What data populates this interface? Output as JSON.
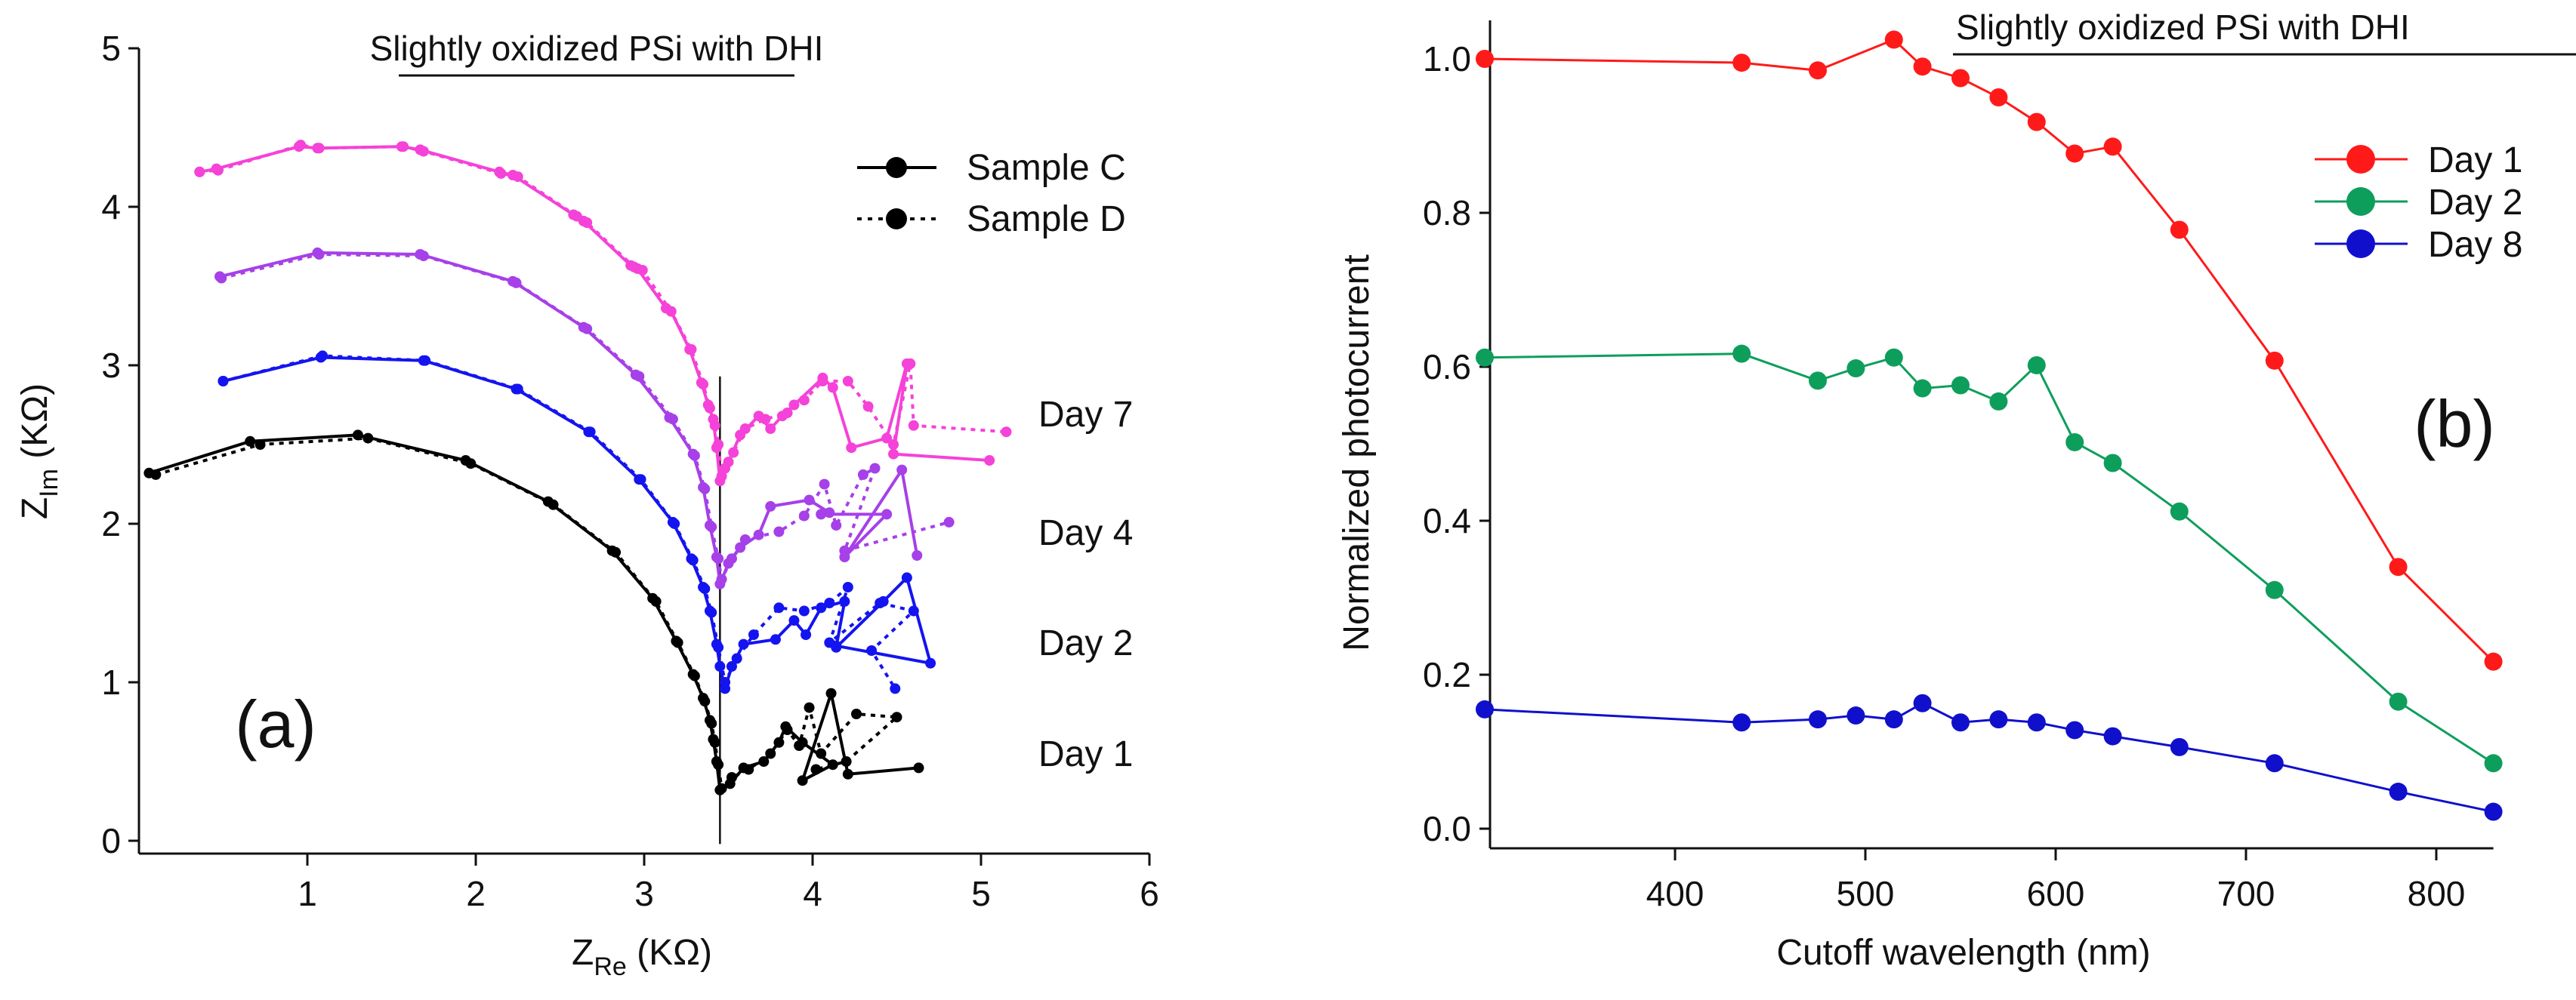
{
  "chart_data": [
    {
      "type": "scatter",
      "panel_label": "(a)",
      "title": "Slightly oxidized PSi with DHI",
      "xlabel_main": "Z",
      "xlabel_sub": "Re",
      "xlabel_unit": " (KΩ)",
      "ylabel_main": "Z",
      "ylabel_sub": "Im",
      "ylabel_unit": " (KΩ)",
      "xlim": [
        0,
        6
      ],
      "ylim": [
        0,
        5
      ],
      "xticks": [
        "1",
        "2",
        "3",
        "4",
        "5",
        "6"
      ],
      "xtick_values": [
        1,
        2,
        3,
        4,
        5,
        6
      ],
      "yticks": [
        "0",
        "1",
        "2",
        "3",
        "4",
        "5"
      ],
      "ytick_values": [
        0,
        1,
        2,
        3,
        4,
        5
      ],
      "vertical_line_x": 3.45,
      "legend": [
        {
          "label": "Sample C",
          "style": "solid"
        },
        {
          "label": "Sample D",
          "style": "dotted"
        }
      ],
      "day_labels": [
        "Day 7",
        "Day 4",
        "Day 2",
        "Day 1"
      ],
      "series": [
        {
          "name": "Day 7 Sample C",
          "day": "Day 7",
          "sample": "C",
          "color": "#f542d8",
          "style": "solid",
          "points": [
            [
              0.36,
              4.22
            ],
            [
              0.46,
              4.24
            ],
            [
              0.95,
              4.38
            ],
            [
              1.06,
              4.37
            ],
            [
              1.56,
              4.38
            ],
            [
              1.67,
              4.36
            ],
            [
              2.14,
              4.22
            ],
            [
              2.22,
              4.2
            ],
            [
              2.58,
              3.95
            ],
            [
              2.64,
              3.91
            ],
            [
              2.92,
              3.63
            ],
            [
              2.96,
              3.61
            ],
            [
              3.13,
              3.36
            ],
            [
              3.16,
              3.34
            ],
            [
              3.27,
              3.1
            ],
            [
              3.34,
              2.89
            ],
            [
              3.38,
              2.75
            ],
            [
              3.41,
              2.66
            ],
            [
              3.43,
              2.48
            ],
            [
              3.45,
              2.27
            ],
            [
              3.5,
              2.39
            ],
            [
              3.57,
              2.56
            ],
            [
              3.68,
              2.68
            ],
            [
              3.75,
              2.6
            ],
            [
              3.82,
              2.68
            ],
            [
              3.89,
              2.75
            ],
            [
              4.06,
              2.92
            ],
            [
              4.12,
              2.86
            ],
            [
              4.23,
              2.48
            ],
            [
              4.44,
              2.54
            ],
            [
              4.56,
              3.01
            ],
            [
              4.48,
              2.44
            ],
            [
              5.05,
              2.4
            ]
          ]
        },
        {
          "name": "Day 7 Sample D",
          "day": "Day 7",
          "sample": "D",
          "color": "#f542d8",
          "style": "dotted",
          "points": [
            [
              0.36,
              4.22
            ],
            [
              0.47,
              4.23
            ],
            [
              0.96,
              4.39
            ],
            [
              1.07,
              4.37
            ],
            [
              1.57,
              4.38
            ],
            [
              1.69,
              4.35
            ],
            [
              2.15,
              4.21
            ],
            [
              2.25,
              4.19
            ],
            [
              2.6,
              3.94
            ],
            [
              2.66,
              3.9
            ],
            [
              2.94,
              3.62
            ],
            [
              2.99,
              3.6
            ],
            [
              3.16,
              3.34
            ],
            [
              3.28,
              3.1
            ],
            [
              3.35,
              2.88
            ],
            [
              3.39,
              2.73
            ],
            [
              3.42,
              2.62
            ],
            [
              3.44,
              2.5
            ],
            [
              3.46,
              2.3
            ],
            [
              3.48,
              2.35
            ],
            [
              3.53,
              2.45
            ],
            [
              3.6,
              2.6
            ],
            [
              3.72,
              2.66
            ],
            [
              3.85,
              2.7
            ],
            [
              3.95,
              2.78
            ],
            [
              4.06,
              2.9
            ],
            [
              4.21,
              2.9
            ],
            [
              4.33,
              2.74
            ],
            [
              4.48,
              2.5
            ],
            [
              4.58,
              3.01
            ],
            [
              4.6,
              2.62
            ],
            [
              5.15,
              2.58
            ]
          ]
        },
        {
          "name": "Day 4 Sample C",
          "day": "Day 4",
          "sample": "C",
          "color": "#a640e8",
          "style": "solid",
          "points": [
            [
              0.48,
              3.56
            ],
            [
              1.06,
              3.71
            ],
            [
              1.67,
              3.7
            ],
            [
              2.22,
              3.53
            ],
            [
              2.64,
              3.24
            ],
            [
              2.95,
              2.94
            ],
            [
              3.15,
              2.67
            ],
            [
              3.29,
              2.44
            ],
            [
              3.35,
              2.23
            ],
            [
              3.39,
              1.99
            ],
            [
              3.43,
              1.79
            ],
            [
              3.45,
              1.62
            ],
            [
              3.5,
              1.75
            ],
            [
              3.57,
              1.85
            ],
            [
              3.68,
              1.93
            ],
            [
              3.75,
              2.11
            ],
            [
              3.98,
              2.15
            ],
            [
              4.1,
              2.07
            ],
            [
              4.05,
              2.06
            ],
            [
              4.44,
              2.06
            ],
            [
              4.19,
              1.79
            ],
            [
              4.53,
              2.34
            ],
            [
              4.62,
              1.8
            ]
          ]
        },
        {
          "name": "Day 4 Sample D",
          "day": "Day 4",
          "sample": "D",
          "color": "#a640e8",
          "style": "dotted",
          "points": [
            [
              0.49,
              3.55
            ],
            [
              1.07,
              3.7
            ],
            [
              1.69,
              3.69
            ],
            [
              2.24,
              3.52
            ],
            [
              2.66,
              3.23
            ],
            [
              2.97,
              2.93
            ],
            [
              3.17,
              2.66
            ],
            [
              3.3,
              2.43
            ],
            [
              3.36,
              2.22
            ],
            [
              3.4,
              1.98
            ],
            [
              3.44,
              1.78
            ],
            [
              3.46,
              1.65
            ],
            [
              3.52,
              1.78
            ],
            [
              3.6,
              1.9
            ],
            [
              3.8,
              1.95
            ],
            [
              3.95,
              2.05
            ],
            [
              4.07,
              2.25
            ],
            [
              4.14,
              1.99
            ],
            [
              4.3,
              2.31
            ],
            [
              4.37,
              2.35
            ],
            [
              4.19,
              1.83
            ],
            [
              4.81,
              2.01
            ]
          ]
        },
        {
          "name": "Day 2 Sample C",
          "day": "Day 2",
          "sample": "C",
          "color": "#1414f0",
          "style": "solid",
          "points": [
            [
              0.5,
              2.9
            ],
            [
              1.08,
              3.05
            ],
            [
              1.69,
              3.03
            ],
            [
              2.24,
              2.85
            ],
            [
              2.67,
              2.58
            ],
            [
              2.97,
              2.28
            ],
            [
              3.17,
              2.01
            ],
            [
              3.28,
              1.78
            ],
            [
              3.35,
              1.6
            ],
            [
              3.39,
              1.45
            ],
            [
              3.43,
              1.24
            ],
            [
              3.45,
              1.1
            ],
            [
              3.48,
              0.96
            ],
            [
              3.52,
              1.1
            ],
            [
              3.59,
              1.24
            ],
            [
              3.78,
              1.27
            ],
            [
              3.89,
              1.39
            ],
            [
              3.96,
              1.3
            ],
            [
              4.05,
              1.47
            ],
            [
              4.19,
              1.51
            ],
            [
              4.14,
              1.22
            ],
            [
              4.42,
              1.51
            ],
            [
              4.56,
              1.66
            ],
            [
              4.7,
              1.12
            ],
            [
              4.14,
              1.23
            ]
          ]
        },
        {
          "name": "Day 2 Sample D",
          "day": "Day 2",
          "sample": "D",
          "color": "#1414f0",
          "style": "dotted",
          "points": [
            [
              0.5,
              2.9
            ],
            [
              1.09,
              3.06
            ],
            [
              1.7,
              3.03
            ],
            [
              2.25,
              2.85
            ],
            [
              2.68,
              2.58
            ],
            [
              2.98,
              2.28
            ],
            [
              3.18,
              2.0
            ],
            [
              3.29,
              1.77
            ],
            [
              3.36,
              1.59
            ],
            [
              3.4,
              1.44
            ],
            [
              3.44,
              1.22
            ],
            [
              3.48,
              1.0
            ],
            [
              3.55,
              1.15
            ],
            [
              3.65,
              1.3
            ],
            [
              3.8,
              1.47
            ],
            [
              3.95,
              1.45
            ],
            [
              4.1,
              1.5
            ],
            [
              4.21,
              1.6
            ],
            [
              4.1,
              1.25
            ],
            [
              4.4,
              1.5
            ],
            [
              4.6,
              1.45
            ],
            [
              4.35,
              1.2
            ],
            [
              4.49,
              0.96
            ]
          ]
        },
        {
          "name": "Day 1 Sample C",
          "day": "Day 1",
          "sample": "C",
          "color": "#000000",
          "style": "solid",
          "points": [
            [
              0.06,
              2.32
            ],
            [
              0.66,
              2.52
            ],
            [
              1.3,
              2.56
            ],
            [
              1.94,
              2.4
            ],
            [
              2.43,
              2.14
            ],
            [
              2.81,
              1.83
            ],
            [
              3.05,
              1.53
            ],
            [
              3.19,
              1.26
            ],
            [
              3.29,
              1.05
            ],
            [
              3.35,
              0.9
            ],
            [
              3.39,
              0.76
            ],
            [
              3.41,
              0.64
            ],
            [
              3.43,
              0.5
            ],
            [
              3.45,
              0.32
            ],
            [
              3.51,
              0.36
            ],
            [
              3.59,
              0.46
            ],
            [
              3.71,
              0.5
            ],
            [
              3.8,
              0.62
            ],
            [
              3.84,
              0.72
            ],
            [
              3.94,
              0.62
            ],
            [
              4.12,
              0.48
            ],
            [
              3.94,
              0.38
            ],
            [
              4.11,
              0.93
            ],
            [
              4.21,
              0.42
            ],
            [
              4.63,
              0.46
            ]
          ]
        },
        {
          "name": "Day 1 Sample D",
          "day": "Day 1",
          "sample": "D",
          "color": "#000000",
          "style": "dotted",
          "points": [
            [
              0.1,
              2.31
            ],
            [
              0.72,
              2.5
            ],
            [
              1.36,
              2.54
            ],
            [
              1.97,
              2.38
            ],
            [
              2.46,
              2.12
            ],
            [
              2.83,
              1.82
            ],
            [
              3.07,
              1.51
            ],
            [
              3.2,
              1.25
            ],
            [
              3.3,
              1.04
            ],
            [
              3.36,
              0.88
            ],
            [
              3.4,
              0.74
            ],
            [
              3.42,
              0.62
            ],
            [
              3.44,
              0.48
            ],
            [
              3.46,
              0.33
            ],
            [
              3.52,
              0.4
            ],
            [
              3.62,
              0.45
            ],
            [
              3.75,
              0.55
            ],
            [
              3.85,
              0.7
            ],
            [
              3.92,
              0.6
            ],
            [
              3.98,
              0.84
            ],
            [
              4.05,
              0.55
            ],
            [
              4.26,
              0.8
            ],
            [
              4.5,
              0.78
            ],
            [
              4.2,
              0.5
            ],
            [
              4.02,
              0.45
            ]
          ]
        }
      ]
    },
    {
      "type": "line",
      "panel_label": "(b)",
      "title": "Slightly oxidized PSi with DHI",
      "xlabel": "Cutoff wavelength (nm)",
      "ylabel": "Normalized photocurrent",
      "xlim": [
        298,
        832
      ],
      "ylim": [
        0,
        1.05
      ],
      "xticks": [
        "400",
        "500",
        "600",
        "700",
        "800"
      ],
      "xtick_values": [
        400,
        500,
        600,
        700,
        800
      ],
      "yticks": [
        "0.0",
        "0.2",
        "0.4",
        "0.6",
        "0.8",
        "1.0"
      ],
      "ytick_values": [
        0,
        0.2,
        0.4,
        0.6,
        0.8,
        1.0
      ],
      "legend_position": "top-right",
      "series": [
        {
          "name": "Day 1",
          "color": "#ff1a1a",
          "x": [
            300,
            435,
            475,
            515,
            530,
            550,
            570,
            590,
            610,
            630,
            665,
            715,
            780,
            830
          ],
          "y": [
            1.0,
            0.995,
            0.985,
            1.025,
            0.99,
            0.975,
            0.95,
            0.918,
            0.877,
            0.886,
            0.778,
            0.608,
            0.34,
            0.217
          ]
        },
        {
          "name": "Day 2",
          "color": "#0e9e5c",
          "x": [
            300,
            435,
            475,
            495,
            515,
            530,
            550,
            570,
            590,
            610,
            630,
            665,
            715,
            780,
            830
          ],
          "y": [
            0.612,
            0.617,
            0.582,
            0.598,
            0.612,
            0.572,
            0.576,
            0.555,
            0.602,
            0.502,
            0.475,
            0.412,
            0.31,
            0.165,
            0.085
          ]
        },
        {
          "name": "Day 8",
          "color": "#1010cc",
          "x": [
            300,
            435,
            475,
            495,
            515,
            530,
            550,
            570,
            590,
            610,
            630,
            665,
            715,
            780,
            830
          ],
          "y": [
            0.155,
            0.138,
            0.142,
            0.147,
            0.142,
            0.163,
            0.138,
            0.142,
            0.138,
            0.128,
            0.12,
            0.106,
            0.085,
            0.048,
            0.022
          ]
        }
      ]
    }
  ]
}
